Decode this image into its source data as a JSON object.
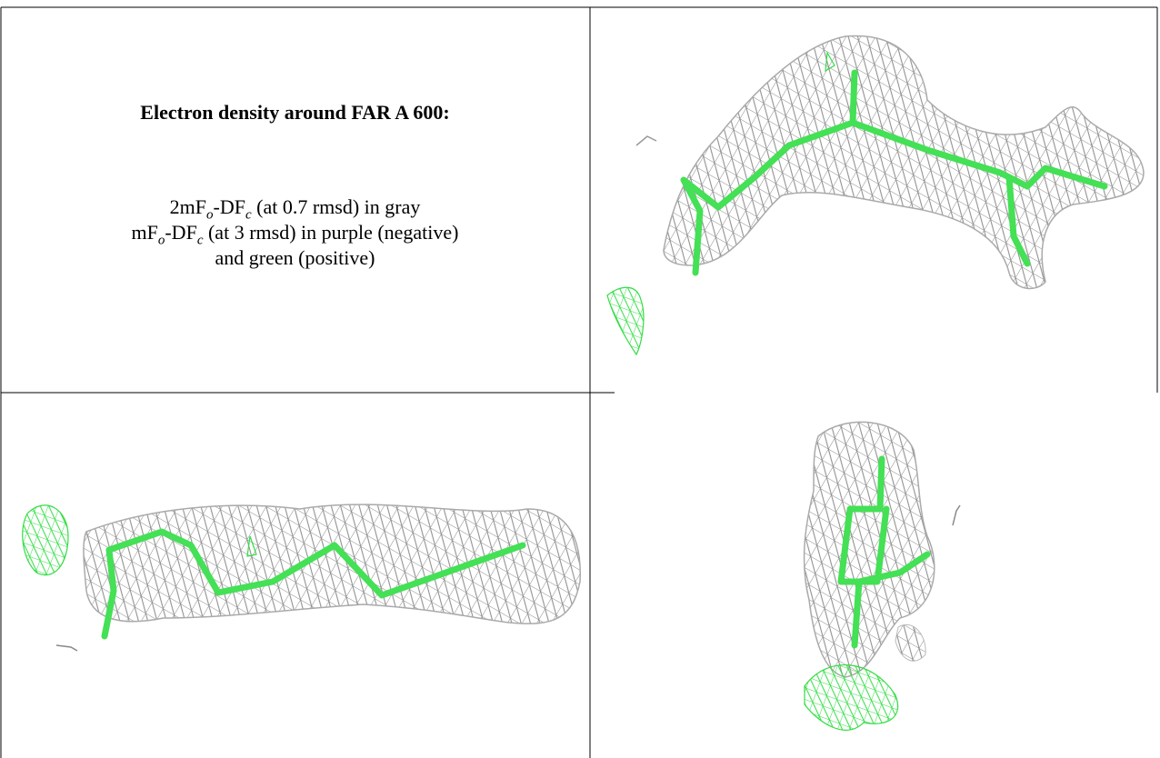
{
  "caption": {
    "title": "Electron density around FAR A 600:",
    "lines": [
      [
        "2mF",
        "o",
        "-DF",
        "c",
        " (at 0.7 rmsd) in gray"
      ],
      [
        "mF",
        "o",
        "-DF",
        "c",
        " (at 3 rmsd) in purple (negative)"
      ],
      [
        "and green (positive)"
      ]
    ]
  }
}
